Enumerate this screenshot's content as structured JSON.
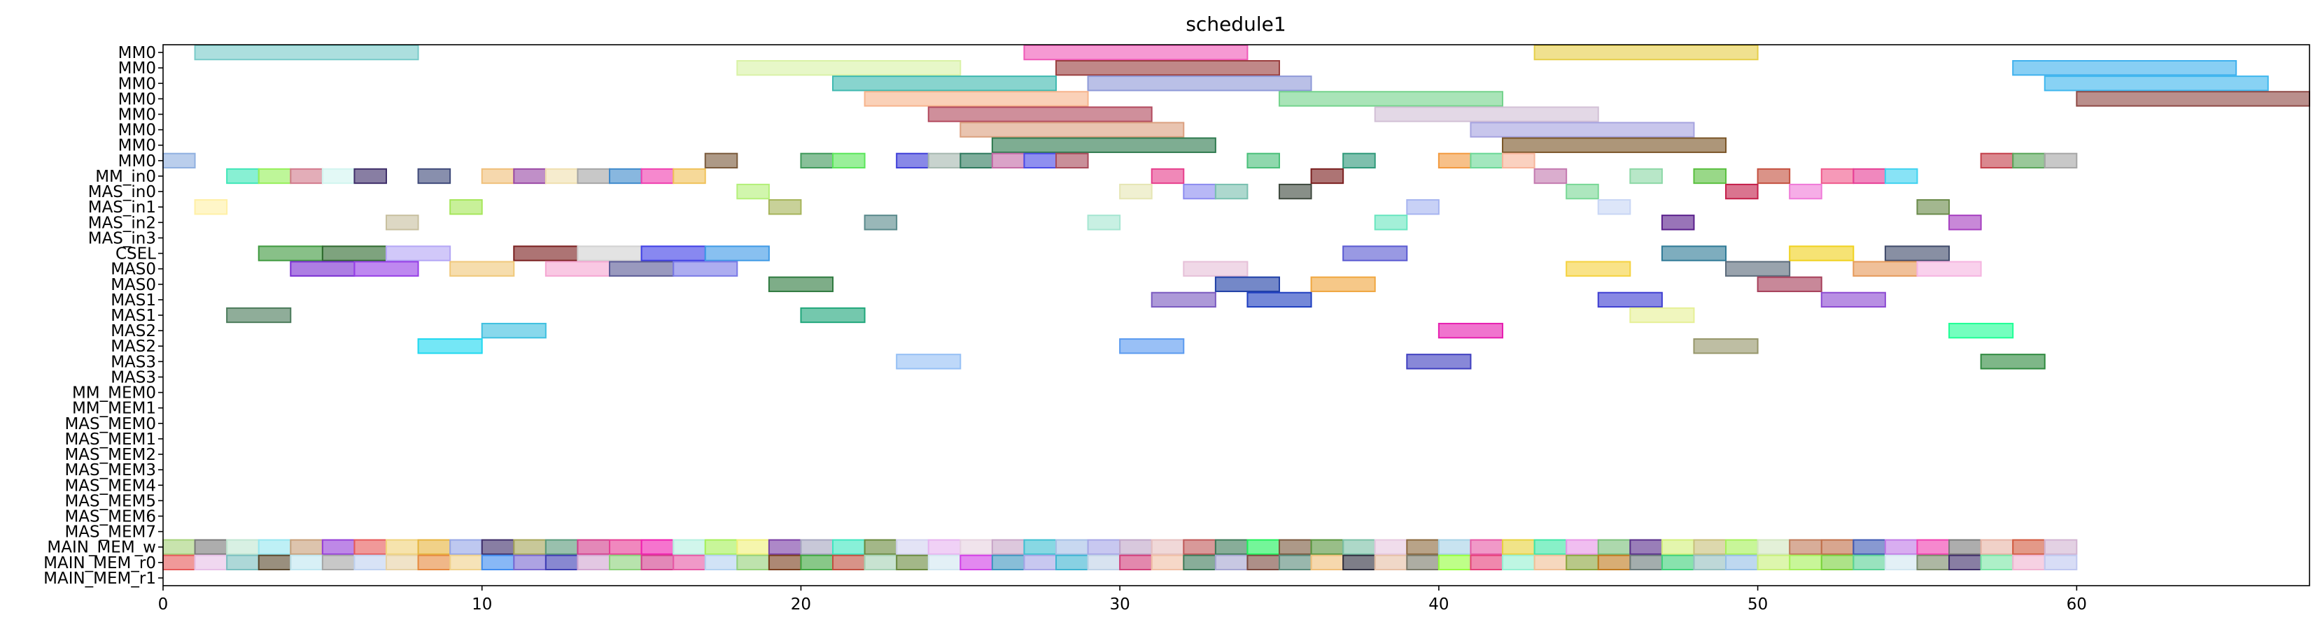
{
  "chart_data": {
    "type": "gantt",
    "title": "schedule1",
    "xlabel": "",
    "ylabel": "",
    "xlim": [
      0,
      67.3
    ],
    "xticks": [
      0,
      10,
      20,
      30,
      40,
      50,
      60
    ],
    "grid": false,
    "rows": [
      "MM0",
      "MM0",
      "MM0",
      "MM0",
      "MM0",
      "MM0",
      "MM0",
      "MM0",
      "MM_in0",
      "MAS_in0",
      "MAS_in1",
      "MAS_in2",
      "MAS_in3",
      "CSEL",
      "MAS0",
      "MAS0",
      "MAS1",
      "MAS1",
      "MAS2",
      "MAS2",
      "MAS3",
      "MAS3",
      "MM_MEM0",
      "MM_MEM1",
      "MAS_MEM0",
      "MAS_MEM1",
      "MAS_MEM2",
      "MAS_MEM3",
      "MAS_MEM4",
      "MAS_MEM5",
      "MAS_MEM6",
      "MAS_MEM7",
      "MAIN_MEM_w",
      "MAIN_MEM_r0",
      "MAIN_MEM_r1"
    ],
    "tasks": [
      {
        "row": 0,
        "start": 1,
        "end": 8,
        "color": "#79cbc9"
      },
      {
        "row": 0,
        "start": 27,
        "end": 34,
        "color": "#f05ab8"
      },
      {
        "row": 0,
        "start": 43,
        "end": 50,
        "color": "#e6cf4a"
      },
      {
        "row": 1,
        "start": 18,
        "end": 25,
        "color": "#d9f2a6"
      },
      {
        "row": 1,
        "start": 28,
        "end": 35,
        "color": "#9a3f3f"
      },
      {
        "row": 1,
        "start": 58,
        "end": 65,
        "color": "#3fb1ee"
      },
      {
        "row": 2,
        "start": 21,
        "end": 28,
        "color": "#3fb9b0"
      },
      {
        "row": 2,
        "start": 29,
        "end": 36,
        "color": "#8f9ad8"
      },
      {
        "row": 2,
        "start": 59,
        "end": 66,
        "color": "#3fb7ee"
      },
      {
        "row": 3,
        "start": 22,
        "end": 29,
        "color": "#f7b48c"
      },
      {
        "row": 3,
        "start": 35,
        "end": 42,
        "color": "#74d38c"
      },
      {
        "row": 3,
        "start": 60,
        "end": 67.3,
        "color": "#8f4a46"
      },
      {
        "row": 4,
        "start": 24,
        "end": 31,
        "color": "#b24a5e"
      },
      {
        "row": 4,
        "start": 38,
        "end": 45,
        "color": "#d2c0d6"
      },
      {
        "row": 5,
        "start": 25,
        "end": 32,
        "color": "#dba07f"
      },
      {
        "row": 5,
        "start": 41,
        "end": 48,
        "color": "#a6a3e0"
      },
      {
        "row": 6,
        "start": 26,
        "end": 33,
        "color": "#2f7a4f"
      },
      {
        "row": 6,
        "start": 42,
        "end": 49,
        "color": "#7a5527"
      },
      {
        "row": 7,
        "start": 0,
        "end": 1,
        "color": "#8fb0e0"
      },
      {
        "row": 7,
        "start": 17,
        "end": 18,
        "color": "#7a5a3c"
      },
      {
        "row": 7,
        "start": 20,
        "end": 21,
        "color": "#3f9a5a"
      },
      {
        "row": 7,
        "start": 21,
        "end": 22,
        "color": "#5ae65a"
      },
      {
        "row": 7,
        "start": 23,
        "end": 24,
        "color": "#3f3fd8"
      },
      {
        "row": 7,
        "start": 24,
        "end": 25,
        "color": "#a6b8b0"
      },
      {
        "row": 7,
        "start": 25,
        "end": 26,
        "color": "#2f7a5e"
      },
      {
        "row": 7,
        "start": 26,
        "end": 27,
        "color": "#c46aa6"
      },
      {
        "row": 7,
        "start": 27,
        "end": 28,
        "color": "#4a4ae6"
      },
      {
        "row": 7,
        "start": 28,
        "end": 29,
        "color": "#a84a5a"
      },
      {
        "row": 7,
        "start": 34,
        "end": 35,
        "color": "#4ac07a"
      },
      {
        "row": 7,
        "start": 37,
        "end": 38,
        "color": "#2f9a7a"
      },
      {
        "row": 7,
        "start": 40,
        "end": 41,
        "color": "#f29a3f"
      },
      {
        "row": 7,
        "start": 41,
        "end": 42,
        "color": "#6ad896"
      },
      {
        "row": 7,
        "start": 42,
        "end": 43,
        "color": "#f7b49a"
      },
      {
        "row": 7,
        "start": 57,
        "end": 58,
        "color": "#c43f4a"
      },
      {
        "row": 7,
        "start": 58,
        "end": 59,
        "color": "#5aa65a"
      },
      {
        "row": 7,
        "start": 59,
        "end": 60,
        "color": "#a6a6a6"
      },
      {
        "row": 8,
        "start": 2,
        "end": 3,
        "color": "#3fe6b8"
      },
      {
        "row": 8,
        "start": 3,
        "end": 4,
        "color": "#96f05a"
      },
      {
        "row": 8,
        "start": 4,
        "end": 5,
        "color": "#d27a8c"
      },
      {
        "row": 8,
        "start": 5,
        "end": 6,
        "color": "#d2f5f0"
      },
      {
        "row": 8,
        "start": 6,
        "end": 7,
        "color": "#3f2f6a"
      },
      {
        "row": 8,
        "start": 8,
        "end": 9,
        "color": "#3f4a7a"
      },
      {
        "row": 8,
        "start": 10,
        "end": 11,
        "color": "#f0c07a"
      },
      {
        "row": 8,
        "start": 11,
        "end": 12,
        "color": "#9a4aa6"
      },
      {
        "row": 8,
        "start": 12,
        "end": 13,
        "color": "#f0e0b0"
      },
      {
        "row": 8,
        "start": 13,
        "end": 14,
        "color": "#a6a6a6"
      },
      {
        "row": 8,
        "start": 14,
        "end": 15,
        "color": "#3f8acc"
      },
      {
        "row": 8,
        "start": 15,
        "end": 16,
        "color": "#f03fb0"
      },
      {
        "row": 8,
        "start": 16,
        "end": 17,
        "color": "#f0c25a"
      },
      {
        "row": 8,
        "start": 31,
        "end": 32,
        "color": "#e63f8c"
      },
      {
        "row": 8,
        "start": 36,
        "end": 37,
        "color": "#7a1f1f"
      },
      {
        "row": 8,
        "start": 43,
        "end": 44,
        "color": "#c47ab0"
      },
      {
        "row": 8,
        "start": 46,
        "end": 47,
        "color": "#8cd8a6"
      },
      {
        "row": 8,
        "start": 48,
        "end": 49,
        "color": "#5ac03f"
      },
      {
        "row": 8,
        "start": 50,
        "end": 51,
        "color": "#c4503f"
      },
      {
        "row": 8,
        "start": 52,
        "end": 53,
        "color": "#f05a8c"
      },
      {
        "row": 8,
        "start": 53,
        "end": 54,
        "color": "#e63f96"
      },
      {
        "row": 8,
        "start": 54,
        "end": 55,
        "color": "#3fd2f0"
      },
      {
        "row": 9,
        "start": 18,
        "end": 19,
        "color": "#b4f07a"
      },
      {
        "row": 9,
        "start": 30,
        "end": 31,
        "color": "#e6e6b4"
      },
      {
        "row": 9,
        "start": 32,
        "end": 33,
        "color": "#8c8cf0"
      },
      {
        "row": 9,
        "start": 33,
        "end": 34,
        "color": "#7ac0b0"
      },
      {
        "row": 9,
        "start": 35,
        "end": 36,
        "color": "#3f4a3f"
      },
      {
        "row": 9,
        "start": 44,
        "end": 45,
        "color": "#7ad896"
      },
      {
        "row": 9,
        "start": 49,
        "end": 50,
        "color": "#c41f4a"
      },
      {
        "row": 9,
        "start": 51,
        "end": 52,
        "color": "#f07ad8"
      },
      {
        "row": 10,
        "start": 1,
        "end": 2,
        "color": "#fff0a6"
      },
      {
        "row": 10,
        "start": 9,
        "end": 10,
        "color": "#a6e65a"
      },
      {
        "row": 10,
        "start": 19,
        "end": 20,
        "color": "#a6b45a"
      },
      {
        "row": 10,
        "start": 39,
        "end": 40,
        "color": "#a6b4f0"
      },
      {
        "row": 10,
        "start": 45,
        "end": 46,
        "color": "#c8d6f5"
      },
      {
        "row": 10,
        "start": 55,
        "end": 56,
        "color": "#6a8a4a"
      },
      {
        "row": 11,
        "start": 7,
        "end": 8,
        "color": "#c8c0a0"
      },
      {
        "row": 11,
        "start": 22,
        "end": 23,
        "color": "#5a8a8c"
      },
      {
        "row": 11,
        "start": 29,
        "end": 30,
        "color": "#a6e6d2"
      },
      {
        "row": 11,
        "start": 38,
        "end": 39,
        "color": "#6ae6c0"
      },
      {
        "row": 11,
        "start": 47,
        "end": 48,
        "color": "#5a1f8c"
      },
      {
        "row": 11,
        "start": 56,
        "end": 57,
        "color": "#a63fc0"
      },
      {
        "row": 13,
        "start": 3,
        "end": 5,
        "color": "#3f9a3f"
      },
      {
        "row": 13,
        "start": 5,
        "end": 7,
        "color": "#2f6a2f"
      },
      {
        "row": 13,
        "start": 7,
        "end": 9,
        "color": "#b4a6f5"
      },
      {
        "row": 13,
        "start": 11,
        "end": 13,
        "color": "#7a1f1f"
      },
      {
        "row": 13,
        "start": 13,
        "end": 15,
        "color": "#d2d2d2"
      },
      {
        "row": 13,
        "start": 15,
        "end": 17,
        "color": "#3f3fe6"
      },
      {
        "row": 13,
        "start": 17,
        "end": 19,
        "color": "#3f9ae6"
      },
      {
        "row": 13,
        "start": 37,
        "end": 39,
        "color": "#5a5ad2"
      },
      {
        "row": 13,
        "start": 47,
        "end": 49,
        "color": "#2f7a96"
      },
      {
        "row": 13,
        "start": 51,
        "end": 53,
        "color": "#f0d21f"
      },
      {
        "row": 13,
        "start": 54,
        "end": 56,
        "color": "#3f4a6a"
      },
      {
        "row": 14,
        "start": 4,
        "end": 6,
        "color": "#7a2fd2"
      },
      {
        "row": 14,
        "start": 6,
        "end": 8,
        "color": "#963fe6"
      },
      {
        "row": 14,
        "start": 9,
        "end": 11,
        "color": "#f0c87a"
      },
      {
        "row": 14,
        "start": 12,
        "end": 14,
        "color": "#f5a6d2"
      },
      {
        "row": 14,
        "start": 14,
        "end": 16,
        "color": "#5a5a96"
      },
      {
        "row": 14,
        "start": 16,
        "end": 18,
        "color": "#7a7ae6"
      },
      {
        "row": 14,
        "start": 32,
        "end": 34,
        "color": "#e6c0d8"
      },
      {
        "row": 14,
        "start": 44,
        "end": 46,
        "color": "#f5d23f"
      },
      {
        "row": 14,
        "start": 49,
        "end": 51,
        "color": "#5a6a7a"
      },
      {
        "row": 14,
        "start": 53,
        "end": 55,
        "color": "#e69a5a"
      },
      {
        "row": 14,
        "start": 55,
        "end": 57,
        "color": "#f5b4e0"
      },
      {
        "row": 15,
        "start": 19,
        "end": 21,
        "color": "#2f7a3f"
      },
      {
        "row": 15,
        "start": 33,
        "end": 35,
        "color": "#1f3fa6"
      },
      {
        "row": 15,
        "start": 36,
        "end": 38,
        "color": "#f0a63f"
      },
      {
        "row": 15,
        "start": 50,
        "end": 52,
        "color": "#a63f5a"
      },
      {
        "row": 16,
        "start": 31,
        "end": 33,
        "color": "#7a5ac0"
      },
      {
        "row": 16,
        "start": 34,
        "end": 36,
        "color": "#1f3fc0"
      },
      {
        "row": 16,
        "start": 45,
        "end": 47,
        "color": "#3f3fd2"
      },
      {
        "row": 16,
        "start": 52,
        "end": 54,
        "color": "#8c4ad2"
      },
      {
        "row": 17,
        "start": 2,
        "end": 4,
        "color": "#4a7a5a"
      },
      {
        "row": 17,
        "start": 20,
        "end": 22,
        "color": "#1fa67a"
      },
      {
        "row": 17,
        "start": 46,
        "end": 48,
        "color": "#e6f096"
      },
      {
        "row": 18,
        "start": 10,
        "end": 12,
        "color": "#3fc0e0"
      },
      {
        "row": 18,
        "start": 40,
        "end": 42,
        "color": "#e61fb0"
      },
      {
        "row": 18,
        "start": 56,
        "end": 58,
        "color": "#1fff96"
      },
      {
        "row": 19,
        "start": 8,
        "end": 10,
        "color": "#1fd8f0"
      },
      {
        "row": 19,
        "start": 30,
        "end": 32,
        "color": "#5a9af0"
      },
      {
        "row": 19,
        "start": 48,
        "end": 50,
        "color": "#96966a"
      },
      {
        "row": 20,
        "start": 23,
        "end": 25,
        "color": "#96c0f5"
      },
      {
        "row": 20,
        "start": 39,
        "end": 41,
        "color": "#3f3fc0"
      },
      {
        "row": 20,
        "start": 57,
        "end": 59,
        "color": "#2f8a3f"
      }
    ],
    "memory_rows": [
      {
        "row": 32,
        "start": 0,
        "count": 60,
        "colors": [
          "#a6d27a",
          "#7a7a7a",
          "#c0e6d2",
          "#96e6f0",
          "#c8a07a",
          "#963fd8",
          "#e65a5a",
          "#f0d27a",
          "#e6b43f",
          "#96a6e6",
          "#3f2f6a",
          "#a6a65a",
          "#5a9a7a",
          "#d23f8c",
          "#e63f96",
          "#f01fb0",
          "#b4f0e0",
          "#a6f05a",
          "#f0f07a",
          "#7a3fa6",
          "#a6a6c0",
          "#3fe6c0",
          "#6a8a3f",
          "#d2d2f0",
          "#e6b4f0",
          "#e6d2e0",
          "#c8a6c8",
          "#3fc0d2",
          "#a6c0e6",
          "#a6a6e6",
          "#c0a6c8",
          "#e6c0c0",
          "#c05a5a",
          "#3f7a5a",
          "#1ff05a",
          "#7a5a3f",
          "#5a963f",
          "#7ac0a6",
          "#e6c8e0",
          "#8c6a3f",
          "#a6d2e6",
          "#e65aa6",
          "#e6d23f",
          "#3fe6a6",
          "#e696e6",
          "#7ac07a",
          "#5a2f8c",
          "#d2f07a",
          "#c8c07a",
          "#a6f05a",
          "#d2e6c0",
          "#c07a5a",
          "#c0704a",
          "#3f5ab4",
          "#c07ae6",
          "#f03fb0",
          "#7a7a7a",
          "#e6b4a6",
          "#d25a3f",
          "#d2b4d2"
        ]
      },
      {
        "row": 33,
        "start": 0,
        "count": 60,
        "colors": [
          "#e65a5a",
          "#e6c0e6",
          "#7ac0c0",
          "#5a4a2f",
          "#c0e6f0",
          "#a6a6a6",
          "#c0d2f0",
          "#e6d2a6",
          "#e68a3f",
          "#f0d28c",
          "#3f8cf0",
          "#7a6ad2",
          "#3f3fb4",
          "#d2a6d2",
          "#8cd27a",
          "#d23f8c",
          "#e65aa6",
          "#b4d2f0",
          "#96d27a",
          "#7a3f1f",
          "#3fa63f",
          "#c0503f",
          "#a6d2b4",
          "#6a8a3f",
          "#d2e6f0",
          "#d23fe6",
          "#3f96c0",
          "#a6a6e6",
          "#3fb4d2",
          "#c0d2e6",
          "#d23f7a",
          "#f0c0a6",
          "#3f7a5a",
          "#a6a6d2",
          "#7a4a3f",
          "#5a8a7a",
          "#f0c07a",
          "#2f2f3f",
          "#e6c0a6",
          "#7a7a6a",
          "#96ff3f",
          "#e63f7a",
          "#96f0d2",
          "#f0c096",
          "#8ca63f",
          "#c07a1f",
          "#6a7a7a",
          "#3fd27a",
          "#96c0c0",
          "#96c0e6",
          "#c8f07a",
          "#a6f05a",
          "#7ad23f",
          "#5ad296",
          "#d2e6f0",
          "#7a8a6a",
          "#3f2f6a",
          "#7ae6a6",
          "#f0b4d2",
          "#c0c8f0"
        ]
      }
    ]
  }
}
